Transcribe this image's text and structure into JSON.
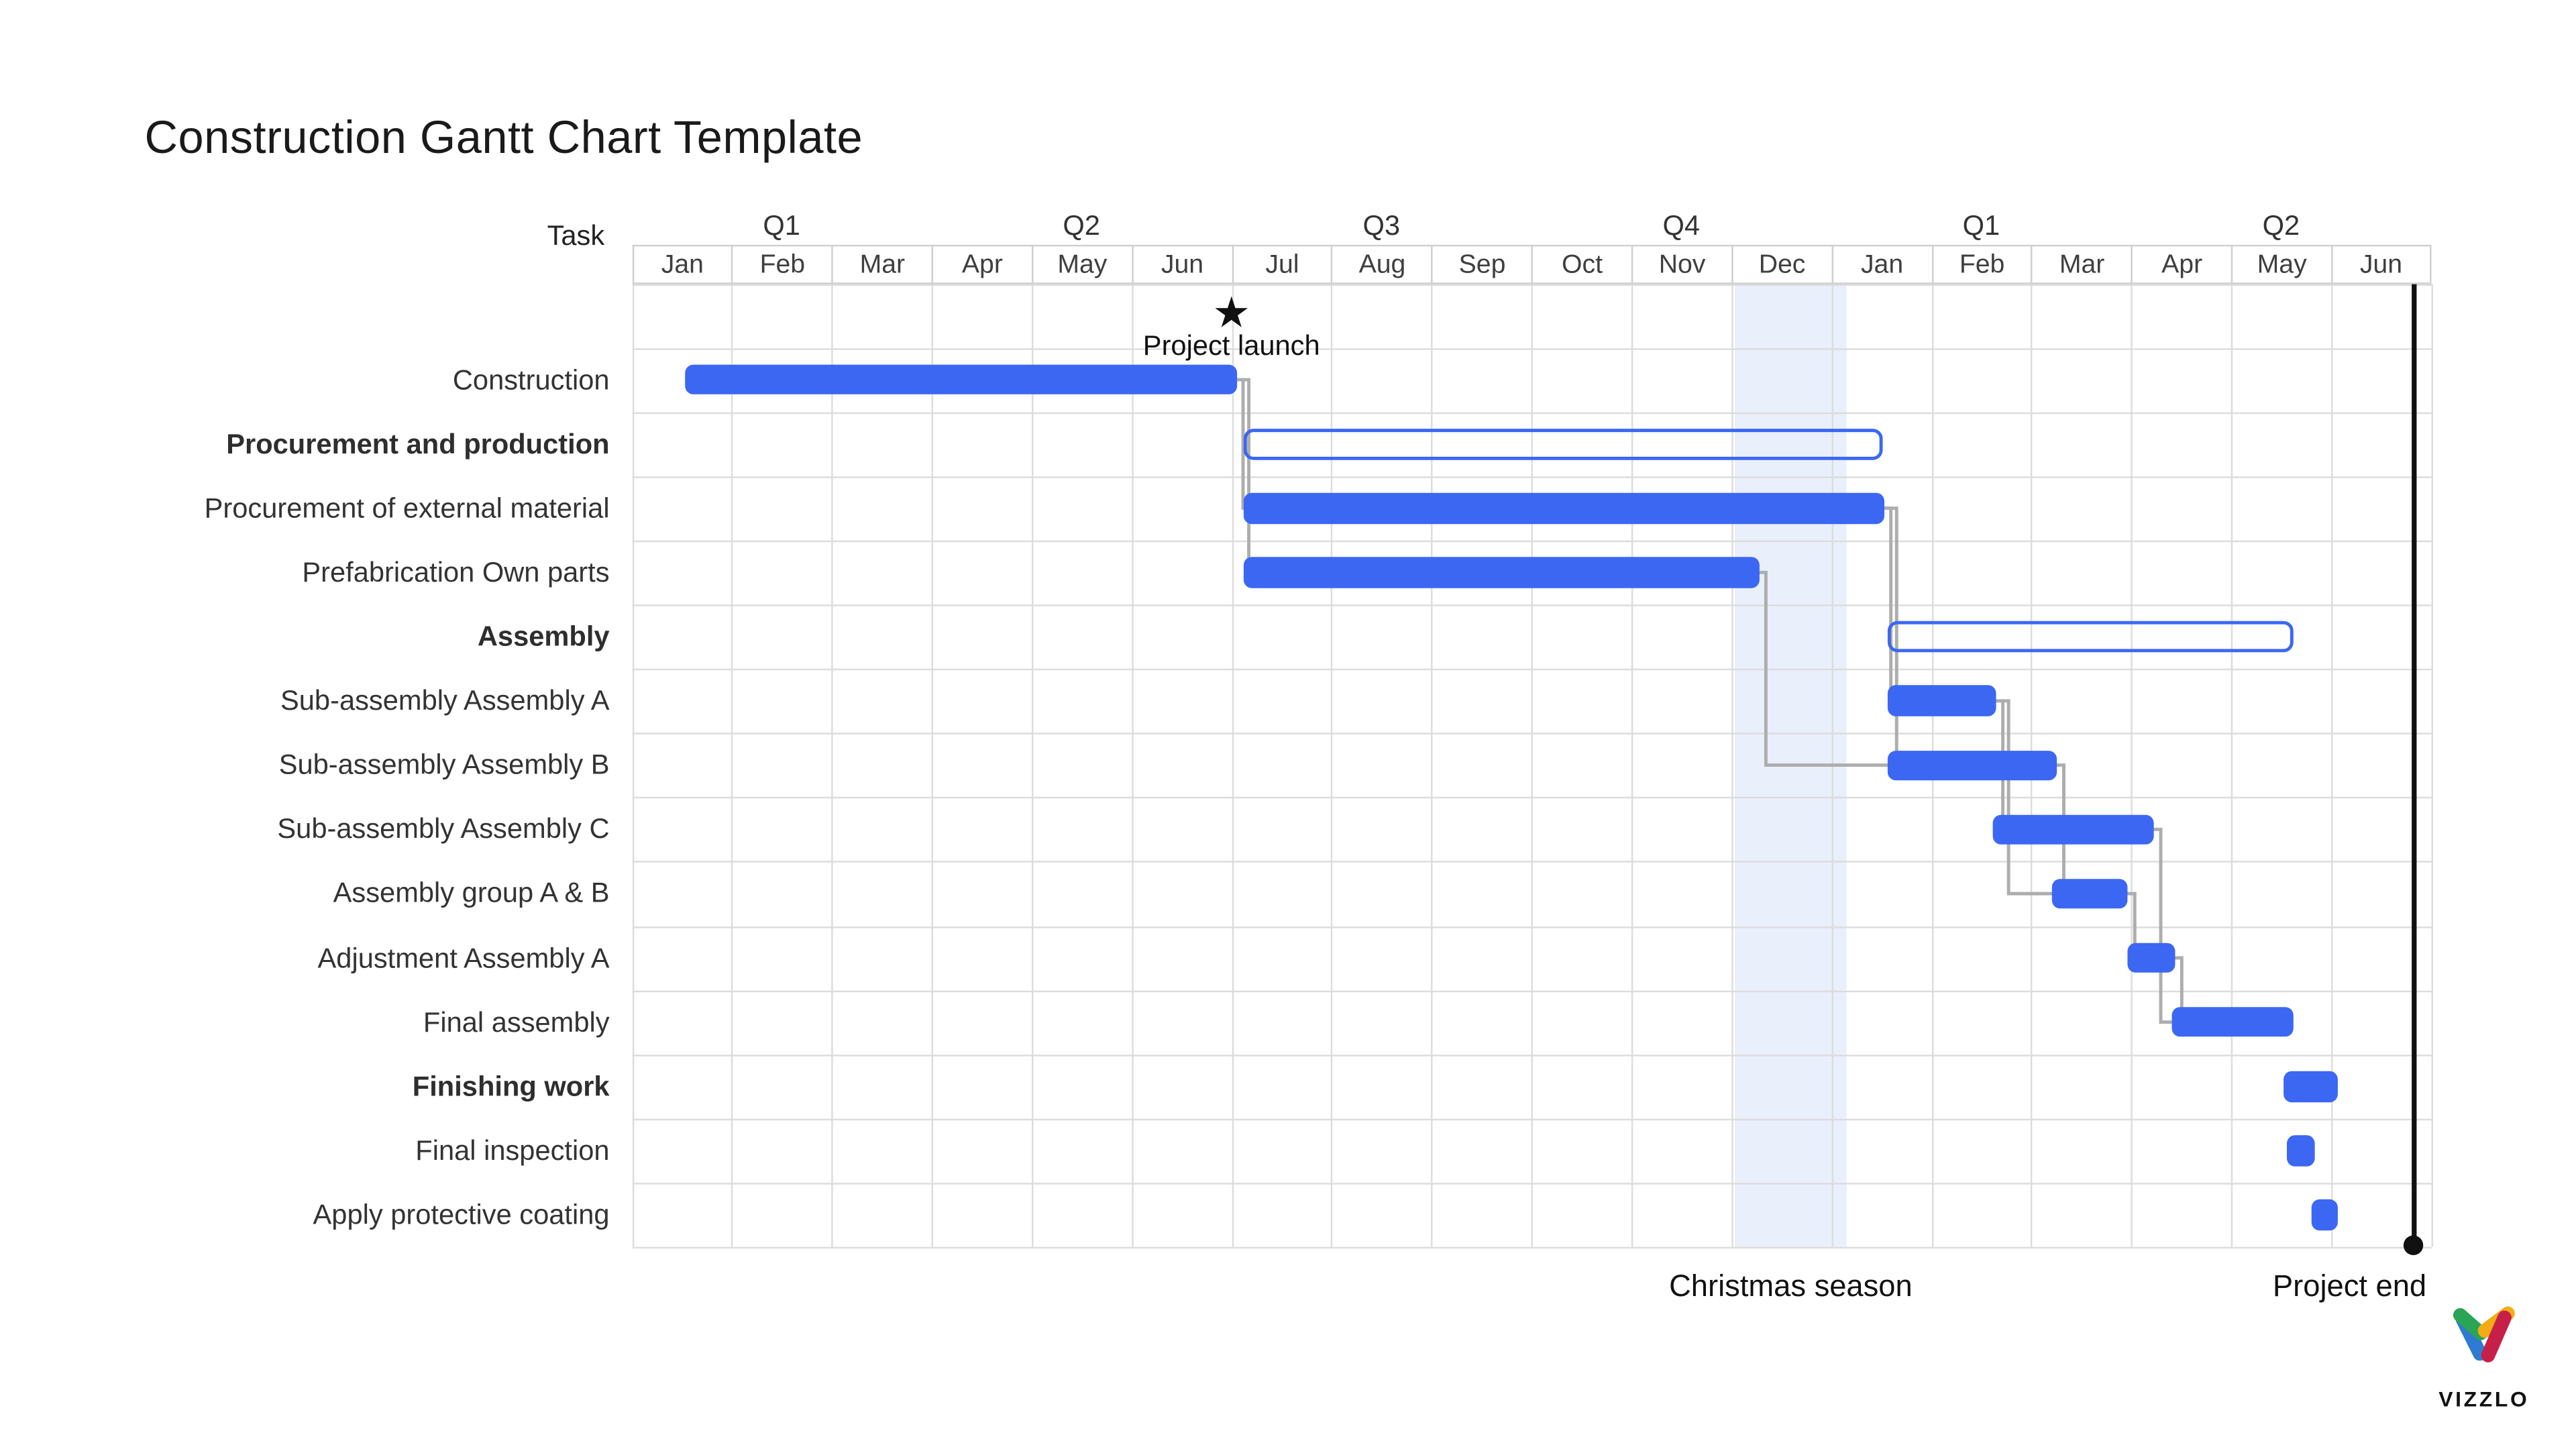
{
  "chart_data": {
    "type": "bar",
    "variant": "gantt",
    "title": "Construction Gantt Chart Template",
    "task_header": "Task",
    "quarters": [
      "Q1",
      "Q2",
      "Q3",
      "Q4",
      "Q1",
      "Q2"
    ],
    "months": [
      "Jan",
      "Feb",
      "Mar",
      "Apr",
      "May",
      "Jun",
      "Jul",
      "Aug",
      "Sep",
      "Oct",
      "Nov",
      "Dec",
      "Jan",
      "Feb",
      "Mar",
      "Apr",
      "May",
      "Jun"
    ],
    "axis": {
      "columns": 18,
      "rows": 15,
      "grid": true,
      "unit": "months-from-first-Jan"
    },
    "tasks": [
      {
        "label": "Construction",
        "summary": false,
        "bar": "solid",
        "start": 0.53,
        "end": 6.05
      },
      {
        "label": "Procurement and production",
        "summary": true,
        "bar": "outline",
        "start": 6.12,
        "end": 12.52
      },
      {
        "label": "Procurement of external material",
        "summary": false,
        "bar": "solid",
        "start": 6.12,
        "end": 12.53
      },
      {
        "label": "Prefabrication Own parts",
        "summary": false,
        "bar": "solid",
        "start": 6.12,
        "end": 11.28
      },
      {
        "label": "Assembly",
        "summary": true,
        "bar": "outline",
        "start": 12.57,
        "end": 16.63
      },
      {
        "label": "Sub-assembly Assembly A",
        "summary": false,
        "bar": "solid",
        "start": 12.57,
        "end": 13.65
      },
      {
        "label": "Sub-assembly Assembly B",
        "summary": false,
        "bar": "solid",
        "start": 12.57,
        "end": 14.26
      },
      {
        "label": "Sub-assembly Assembly C",
        "summary": false,
        "bar": "solid",
        "start": 13.62,
        "end": 15.23
      },
      {
        "label": "Assembly group A & B",
        "summary": false,
        "bar": "solid",
        "start": 14.21,
        "end": 14.97
      },
      {
        "label": "Adjustment Assembly A",
        "summary": false,
        "bar": "solid",
        "start": 14.97,
        "end": 15.44
      },
      {
        "label": "Final assembly",
        "summary": false,
        "bar": "solid",
        "start": 15.4,
        "end": 16.63
      },
      {
        "label": "Finishing work",
        "summary": true,
        "bar": "solid",
        "start": 16.53,
        "end": 17.07
      },
      {
        "label": "Final inspection",
        "summary": false,
        "bar": "solid",
        "start": 16.55,
        "end": 16.84
      },
      {
        "label": "Apply protective coating",
        "summary": false,
        "bar": "solid",
        "start": 16.81,
        "end": 17.07
      }
    ],
    "milestones": [
      {
        "label": "Project launch",
        "month": 6.0,
        "symbol": "star",
        "glyph": "★"
      },
      {
        "label": "Project end",
        "month": 17.83,
        "symbol": "vertical-line-with-dot"
      }
    ],
    "highlight_range": {
      "label": "Christmas season",
      "start": 11.04,
      "end": 12.16
    },
    "dependencies": [
      [
        0,
        2
      ],
      [
        0,
        3
      ],
      [
        2,
        5
      ],
      [
        2,
        6
      ],
      [
        3,
        6
      ],
      [
        5,
        7
      ],
      [
        5,
        8
      ],
      [
        6,
        8
      ],
      [
        7,
        10
      ],
      [
        8,
        9
      ],
      [
        9,
        10
      ]
    ],
    "legend": null
  },
  "branding": {
    "logo_text": "VIZZLO"
  },
  "colors": {
    "bar_fill": "#3B67F3",
    "bar_outline": "#3B67F3",
    "highlight_band": "#EAEFFC",
    "connector": "#ADADAD",
    "grid": "#DCDCDC",
    "milestone": "#111111",
    "logo_green": "#2AA455",
    "logo_yellow": "#F3AC15",
    "logo_blue": "#2E7BD1",
    "logo_red": "#C62049"
  }
}
